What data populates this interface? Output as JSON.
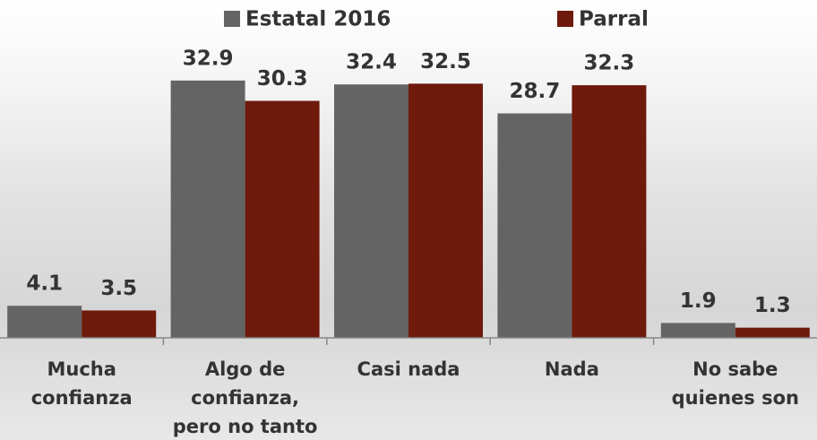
{
  "chart_data": {
    "type": "bar",
    "categories": [
      [
        "Mucha",
        "confianza"
      ],
      [
        "Algo de",
        "confianza,",
        "pero no tanto"
      ],
      [
        "Casi nada"
      ],
      [
        "Nada"
      ],
      [
        "No sabe",
        "quienes son"
      ]
    ],
    "series": [
      {
        "name": "Estatal 2016",
        "color": "#646464",
        "values": [
          4.1,
          32.9,
          32.4,
          28.7,
          1.9
        ]
      },
      {
        "name": "Parral",
        "color": "#6e1a0c",
        "values": [
          3.5,
          30.3,
          32.5,
          32.3,
          1.3
        ]
      }
    ],
    "ylim": [
      0,
      33
    ]
  }
}
